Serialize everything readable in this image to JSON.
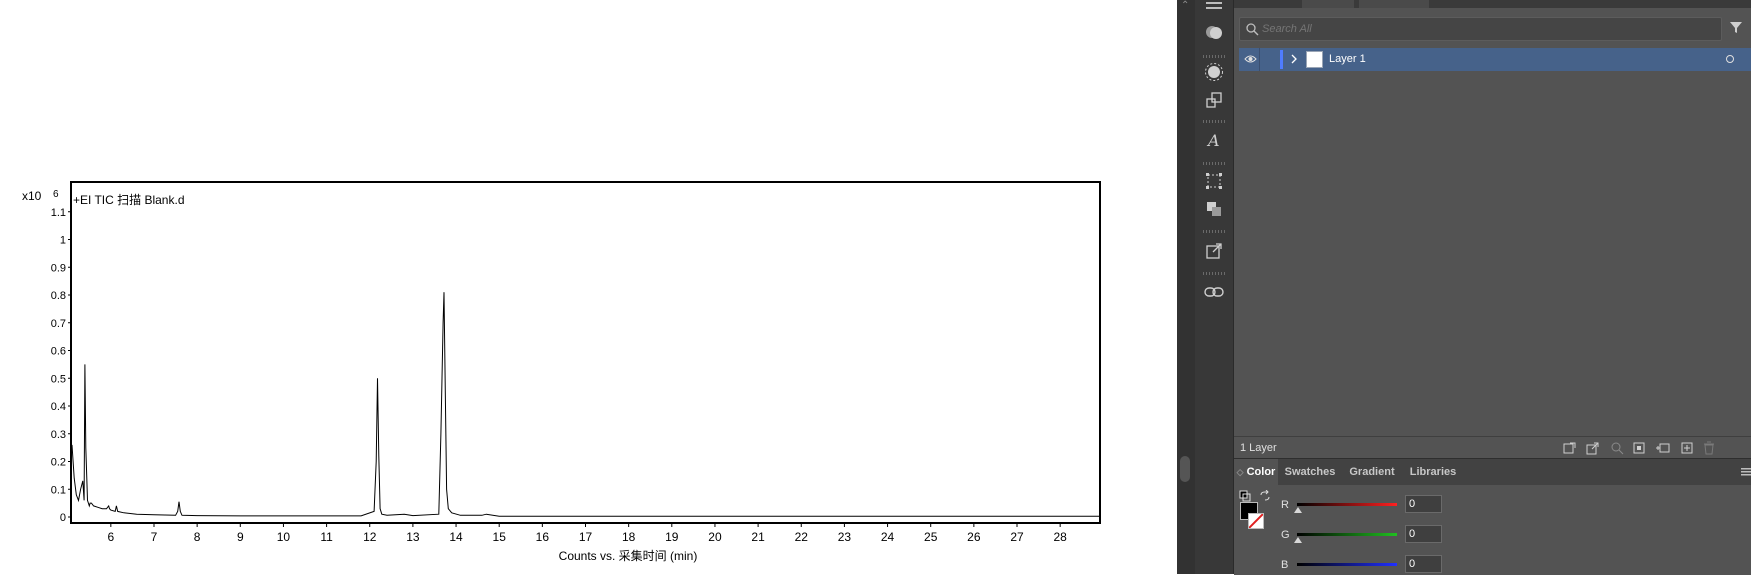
{
  "chart_data": {
    "type": "line",
    "title": "+EI TIC 扫描 Blank.d",
    "y_exponent_label": "x10",
    "y_exponent_value": "6",
    "xlabel": "Counts vs. 采集时间 (min)",
    "ylabel": "",
    "xlim": [
      5.1,
      28.9
    ],
    "ylim": [
      0,
      1.2
    ],
    "x_ticks": [
      6,
      7,
      8,
      9,
      10,
      11,
      12,
      13,
      14,
      15,
      16,
      17,
      18,
      19,
      20,
      21,
      22,
      23,
      24,
      25,
      26,
      27,
      28
    ],
    "y_ticks": [
      "0",
      "0.1",
      "0.2",
      "0.3",
      "0.4",
      "0.5",
      "0.6",
      "0.7",
      "0.8",
      "0.9",
      "1",
      "1.1"
    ],
    "y_tick_values": [
      0,
      0.1,
      0.2,
      0.3,
      0.4,
      0.5,
      0.6,
      0.7,
      0.8,
      0.9,
      1.0,
      1.1
    ],
    "series": [
      {
        "x": [
          5.1,
          5.15,
          5.2,
          5.25,
          5.3,
          5.35,
          5.38,
          5.4,
          5.42,
          5.44,
          5.46,
          5.48,
          5.5,
          5.52,
          5.55,
          5.6,
          5.7,
          5.8,
          5.9,
          5.95,
          5.97,
          6.0,
          6.1,
          6.13,
          6.16,
          6.3,
          6.6,
          7.0,
          7.5,
          7.55,
          7.58,
          7.61,
          7.65,
          8.0,
          9.0,
          10.0,
          11.0,
          11.8,
          12.1,
          12.15,
          12.18,
          12.21,
          12.24,
          12.28,
          12.4,
          12.8,
          13.0,
          13.6,
          13.65,
          13.7,
          13.72,
          13.75,
          13.78,
          13.82,
          13.9,
          14.1,
          14.6,
          14.7,
          15.0,
          17.0,
          20.0,
          24.0,
          28.9
        ],
        "y": [
          0.26,
          0.14,
          0.08,
          0.06,
          0.1,
          0.13,
          0.06,
          0.55,
          0.25,
          0.15,
          0.06,
          0.05,
          0.04,
          0.05,
          0.05,
          0.04,
          0.035,
          0.03,
          0.03,
          0.04,
          0.03,
          0.025,
          0.02,
          0.04,
          0.02,
          0.015,
          0.01,
          0.008,
          0.006,
          0.02,
          0.055,
          0.02,
          0.006,
          0.005,
          0.004,
          0.004,
          0.004,
          0.004,
          0.02,
          0.2,
          0.5,
          0.22,
          0.03,
          0.01,
          0.006,
          0.01,
          0.005,
          0.01,
          0.3,
          0.7,
          0.81,
          0.45,
          0.1,
          0.03,
          0.015,
          0.006,
          0.006,
          0.01,
          0.003,
          0.003,
          0.003,
          0.003,
          0.003
        ]
      }
    ],
    "grid": false,
    "legend": "none"
  },
  "layers_panel": {
    "search_placeholder": "Search All",
    "layer_name": "Layer 1",
    "layer_count": "1 Layer"
  },
  "color_panel": {
    "tabs": [
      "Color",
      "Swatches",
      "Gradient",
      "Libraries"
    ],
    "active_tab": "Color",
    "channels": [
      {
        "label": "R",
        "value": "0",
        "color": "#ff2020"
      },
      {
        "label": "G",
        "value": "0",
        "color": "#20c020"
      },
      {
        "label": "B",
        "value": "0",
        "color": "#2030ff"
      }
    ]
  },
  "colors": {
    "panel_bg": "#535353",
    "selected_row": "#46628a",
    "layer_color": "#4f7cff"
  }
}
